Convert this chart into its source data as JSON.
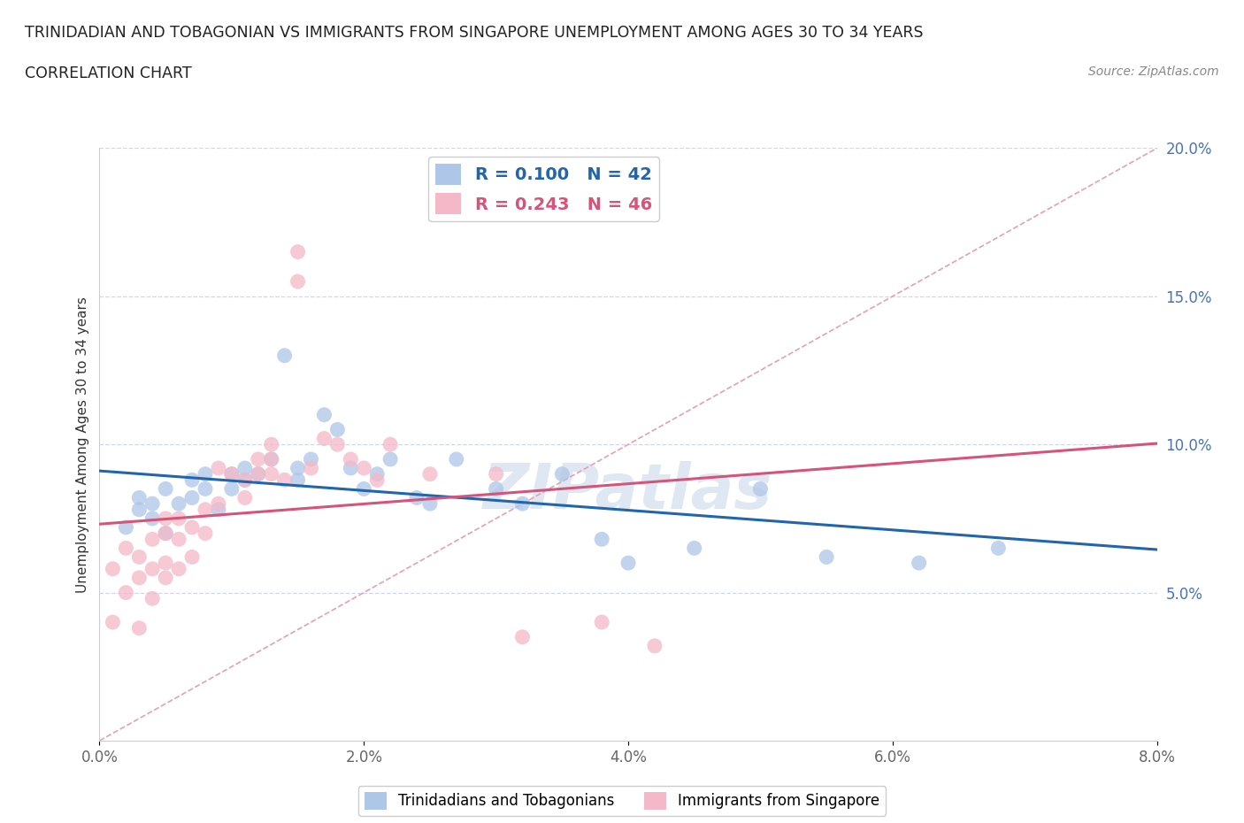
{
  "title_line1": "TRINIDADIAN AND TOBAGONIAN VS IMMIGRANTS FROM SINGAPORE UNEMPLOYMENT AMONG AGES 30 TO 34 YEARS",
  "title_line2": "CORRELATION CHART",
  "source_text": "Source: ZipAtlas.com",
  "ylabel": "Unemployment Among Ages 30 to 34 years",
  "xlim": [
    0.0,
    0.08
  ],
  "ylim": [
    0.0,
    0.2
  ],
  "xticks": [
    0.0,
    0.02,
    0.04,
    0.06,
    0.08
  ],
  "xticklabels": [
    "0.0%",
    "2.0%",
    "4.0%",
    "6.0%",
    "8.0%"
  ],
  "yticks": [
    0.05,
    0.1,
    0.15,
    0.2
  ],
  "yticklabels": [
    "5.0%",
    "10.0%",
    "15.0%",
    "20.0%"
  ],
  "legend_blue_R": "0.100",
  "legend_blue_N": "42",
  "legend_pink_R": "0.243",
  "legend_pink_N": "46",
  "blue_color": "#aec6e8",
  "pink_color": "#f4b8c8",
  "blue_line_color": "#2166ac",
  "pink_line_color": "#d6547a",
  "diag_line_color": "#e8a0b0",
  "watermark_color": "#c8d8ea",
  "blue_scatter_x": [
    0.002,
    0.003,
    0.003,
    0.004,
    0.004,
    0.005,
    0.005,
    0.006,
    0.007,
    0.007,
    0.008,
    0.008,
    0.009,
    0.01,
    0.01,
    0.011,
    0.011,
    0.012,
    0.013,
    0.014,
    0.015,
    0.015,
    0.016,
    0.017,
    0.018,
    0.019,
    0.02,
    0.021,
    0.022,
    0.024,
    0.025,
    0.027,
    0.03,
    0.032,
    0.035,
    0.038,
    0.04,
    0.045,
    0.05,
    0.055,
    0.062,
    0.068
  ],
  "blue_scatter_y": [
    0.072,
    0.078,
    0.082,
    0.075,
    0.08,
    0.07,
    0.085,
    0.08,
    0.082,
    0.088,
    0.085,
    0.09,
    0.078,
    0.085,
    0.09,
    0.088,
    0.092,
    0.09,
    0.095,
    0.13,
    0.088,
    0.092,
    0.095,
    0.11,
    0.105,
    0.092,
    0.085,
    0.09,
    0.095,
    0.082,
    0.08,
    0.095,
    0.085,
    0.08,
    0.09,
    0.068,
    0.06,
    0.065,
    0.085,
    0.062,
    0.06,
    0.065
  ],
  "pink_scatter_x": [
    0.001,
    0.001,
    0.002,
    0.002,
    0.003,
    0.003,
    0.003,
    0.004,
    0.004,
    0.004,
    0.005,
    0.005,
    0.005,
    0.005,
    0.006,
    0.006,
    0.006,
    0.007,
    0.007,
    0.008,
    0.008,
    0.009,
    0.009,
    0.01,
    0.011,
    0.011,
    0.012,
    0.012,
    0.013,
    0.013,
    0.013,
    0.014,
    0.015,
    0.015,
    0.016,
    0.017,
    0.018,
    0.019,
    0.02,
    0.021,
    0.022,
    0.025,
    0.03,
    0.032,
    0.038,
    0.042
  ],
  "pink_scatter_y": [
    0.04,
    0.058,
    0.05,
    0.065,
    0.038,
    0.055,
    0.062,
    0.048,
    0.058,
    0.068,
    0.06,
    0.07,
    0.075,
    0.055,
    0.058,
    0.068,
    0.075,
    0.062,
    0.072,
    0.07,
    0.078,
    0.08,
    0.092,
    0.09,
    0.082,
    0.088,
    0.09,
    0.095,
    0.09,
    0.095,
    0.1,
    0.088,
    0.155,
    0.165,
    0.092,
    0.102,
    0.1,
    0.095,
    0.092,
    0.088,
    0.1,
    0.09,
    0.09,
    0.035,
    0.04,
    0.032
  ]
}
